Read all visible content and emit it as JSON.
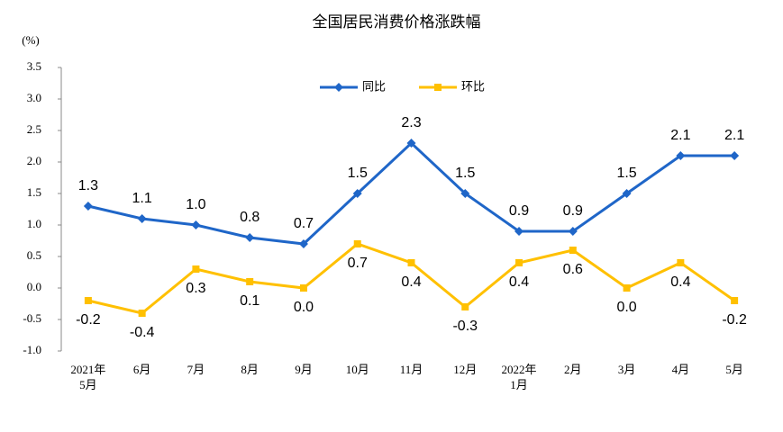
{
  "chart_data": {
    "type": "line",
    "title": "全国居民消费价格涨跌幅",
    "ylabel": "(%)",
    "categories": [
      "2021年\n5月",
      "6月",
      "7月",
      "8月",
      "9月",
      "10月",
      "11月",
      "12月",
      "2022年\n1月",
      "2月",
      "3月",
      "4月",
      "5月"
    ],
    "series": [
      {
        "name": "同比",
        "color": "#1f66c8",
        "marker": "diamond",
        "label_position": "above",
        "values": [
          1.3,
          1.1,
          1.0,
          0.8,
          0.7,
          1.5,
          2.3,
          1.5,
          0.9,
          0.9,
          1.5,
          2.1,
          2.1
        ],
        "value_labels": [
          "1.3",
          "1.1",
          "1.0",
          "0.8",
          "0.7",
          "1.5",
          "2.3",
          "1.5",
          "0.9",
          "0.9",
          "1.5",
          "2.1",
          "2.1"
        ]
      },
      {
        "name": "环比",
        "color": "#ffc000",
        "marker": "square",
        "label_position": "below",
        "values": [
          -0.2,
          -0.4,
          0.3,
          0.1,
          0.0,
          0.7,
          0.4,
          -0.3,
          0.4,
          0.6,
          0.0,
          0.4,
          -0.2
        ],
        "value_labels": [
          "-0.2",
          "-0.4",
          "0.3",
          "0.1",
          "0.0",
          "0.7",
          "0.4",
          "-0.3",
          "0.4",
          "0.6",
          "0.0",
          "0.4",
          "-0.2"
        ]
      }
    ],
    "ylim": [
      -1.0,
      3.5
    ],
    "yticks": [
      {
        "value": -1.0,
        "label": "-1.0"
      },
      -0.5,
      {
        "value": 0.0,
        "label": "0.0"
      },
      0.5,
      {
        "value": 1.0,
        "label": "1.0"
      },
      1.5,
      {
        "value": 2.0,
        "label": "2.0"
      },
      2.5,
      {
        "value": 3.0,
        "label": "3.0"
      },
      3.5
    ],
    "grid": false,
    "legend": "top"
  }
}
